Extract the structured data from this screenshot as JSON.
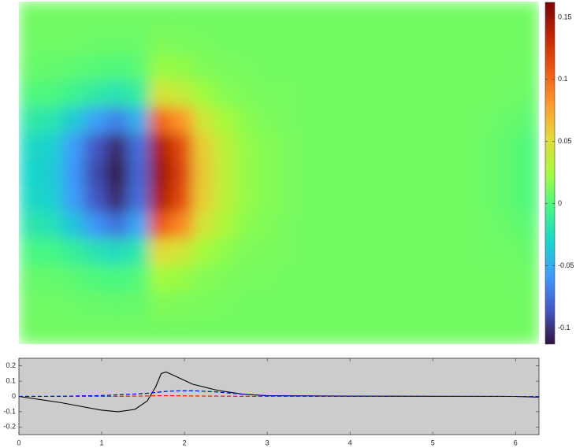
{
  "chart_data": [
    {
      "type": "heatmap",
      "zlim": [
        -0.113,
        0.162
      ],
      "zticks": [
        -0.1,
        -0.05,
        0,
        0.05,
        0.1,
        0.15
      ],
      "colormap": [
        "#30123b",
        "#4457c7",
        "#3e9bfe",
        "#18d6cb",
        "#46f884",
        "#a4fc3c",
        "#e2dc38",
        "#fe9b2d",
        "#ef5911",
        "#c42503",
        "#7a0403"
      ],
      "z": [
        [
          0.01,
          0.01,
          0.01,
          0.01,
          0.01,
          0.01,
          0.01,
          0.01,
          0.01,
          0.01,
          0.01,
          0.01,
          0.01,
          0.01,
          0.01,
          0.01,
          0.01,
          0.01,
          0.01,
          0.01,
          0.01,
          0.01,
          0.01,
          0.01
        ],
        [
          0.009,
          0.009,
          0.009,
          0.008,
          0.008,
          0.008,
          0.013,
          0.012,
          0.011,
          0.01,
          0.01,
          0.01,
          0.01,
          0.01,
          0.01,
          0.01,
          0.01,
          0.01,
          0.01,
          0.01,
          0.01,
          0.01,
          0.01,
          0.01
        ],
        [
          0.007,
          0.006,
          0.004,
          0.002,
          0.0,
          0.003,
          0.021,
          0.019,
          0.014,
          0.012,
          0.011,
          0.01,
          0.01,
          0.01,
          0.01,
          0.01,
          0.01,
          0.01,
          0.01,
          0.01,
          0.01,
          0.01,
          0.01,
          0.009
        ],
        [
          0.0,
          -0.001,
          -0.008,
          -0.015,
          -0.02,
          -0.013,
          0.045,
          0.038,
          0.023,
          0.016,
          0.013,
          0.011,
          0.011,
          0.01,
          0.01,
          0.01,
          0.01,
          0.01,
          0.01,
          0.01,
          0.01,
          0.01,
          0.009,
          0.008
        ],
        [
          -0.016,
          -0.019,
          -0.036,
          -0.055,
          -0.068,
          -0.049,
          0.101,
          0.082,
          0.043,
          0.026,
          0.017,
          0.013,
          0.011,
          0.01,
          0.01,
          0.01,
          0.01,
          0.01,
          0.01,
          0.01,
          0.01,
          0.009,
          0.007,
          0.004
        ],
        [
          -0.028,
          -0.033,
          -0.057,
          -0.085,
          -0.104,
          -0.076,
          0.143,
          0.115,
          0.058,
          0.034,
          0.02,
          0.015,
          0.012,
          0.01,
          0.01,
          0.01,
          0.01,
          0.01,
          0.01,
          0.01,
          0.01,
          0.008,
          0.005,
          0.0
        ],
        [
          -0.03,
          -0.035,
          -0.06,
          -0.09,
          -0.11,
          -0.08,
          0.15,
          0.12,
          0.06,
          0.035,
          0.02,
          0.015,
          0.012,
          0.01,
          0.01,
          0.01,
          0.01,
          0.01,
          0.01,
          0.01,
          0.01,
          0.008,
          0.005,
          0.0
        ],
        [
          -0.028,
          -0.033,
          -0.057,
          -0.085,
          -0.104,
          -0.076,
          0.143,
          0.115,
          0.058,
          0.034,
          0.02,
          0.015,
          0.012,
          0.01,
          0.01,
          0.01,
          0.01,
          0.01,
          0.01,
          0.01,
          0.01,
          0.008,
          0.005,
          0.0
        ],
        [
          -0.018,
          -0.022,
          -0.039,
          -0.06,
          -0.074,
          -0.053,
          0.108,
          0.087,
          0.045,
          0.028,
          0.017,
          0.014,
          0.011,
          0.01,
          0.01,
          0.01,
          0.01,
          0.01,
          0.01,
          0.01,
          0.01,
          0.009,
          0.007,
          0.003
        ],
        [
          -0.002,
          -0.004,
          -0.011,
          -0.02,
          -0.026,
          -0.017,
          0.052,
          0.043,
          0.025,
          0.018,
          0.013,
          0.012,
          0.011,
          0.01,
          0.01,
          0.01,
          0.01,
          0.01,
          0.01,
          0.01,
          0.01,
          0.009,
          0.009,
          0.007
        ],
        [
          0.006,
          0.006,
          0.003,
          0.0,
          -0.002,
          0.001,
          0.024,
          0.021,
          0.015,
          0.013,
          0.011,
          0.011,
          0.01,
          0.01,
          0.01,
          0.01,
          0.01,
          0.01,
          0.01,
          0.01,
          0.01,
          0.01,
          0.01,
          0.009
        ],
        [
          0.009,
          0.009,
          0.008,
          0.007,
          0.006,
          0.007,
          0.014,
          0.013,
          0.012,
          0.011,
          0.01,
          0.01,
          0.01,
          0.01,
          0.01,
          0.01,
          0.01,
          0.01,
          0.01,
          0.01,
          0.01,
          0.01,
          0.01,
          0.01
        ],
        [
          0.01,
          0.01,
          0.01,
          0.01,
          0.01,
          0.01,
          0.01,
          0.01,
          0.01,
          0.01,
          0.01,
          0.01,
          0.01,
          0.01,
          0.01,
          0.01,
          0.01,
          0.01,
          0.01,
          0.01,
          0.01,
          0.01,
          0.01,
          0.01
        ]
      ]
    },
    {
      "type": "line",
      "background": "#cccccc",
      "xlim": [
        0,
        6.2832
      ],
      "xticks": [
        0,
        1,
        2,
        3,
        4,
        5,
        6
      ],
      "ylim": [
        -0.25,
        0.25
      ],
      "yticks": [
        -0.2,
        -0.1,
        0,
        0.1,
        0.2
      ],
      "x": [
        0,
        0.5,
        1,
        1.2,
        1.4,
        1.55,
        1.65,
        1.72,
        1.78,
        1.9,
        2.1,
        2.4,
        2.7,
        3,
        4,
        5,
        6,
        6.28
      ],
      "series": [
        {
          "color": "#000000",
          "linestyle": "solid",
          "values": [
            0,
            -0.04,
            -0.09,
            -0.1,
            -0.085,
            -0.03,
            0.06,
            0.15,
            0.16,
            0.13,
            0.08,
            0.04,
            0.015,
            0.005,
            0.002,
            0.001,
            0,
            -0.005
          ]
        },
        {
          "color": "#ff0000",
          "linestyle": "dashed",
          "values": [
            0,
            0,
            0,
            0.001,
            0.002,
            0.003,
            0.004,
            0.005,
            0.005,
            0.004,
            0.003,
            0.002,
            0.001,
            0,
            0,
            0,
            0,
            0
          ]
        },
        {
          "color": "#00b000",
          "linestyle": "dashed",
          "values": [
            0,
            0.001,
            0.005,
            0.01,
            0.015,
            0.02,
            0.025,
            0.03,
            0.033,
            0.037,
            0.038,
            0.03,
            0.015,
            0.005,
            0.001,
            0,
            0,
            0
          ]
        },
        {
          "color": "#0000ff",
          "linestyle": "dashed",
          "values": [
            0,
            0.001,
            0.006,
            0.011,
            0.016,
            0.021,
            0.026,
            0.03,
            0.033,
            0.036,
            0.037,
            0.029,
            0.014,
            0.005,
            0.001,
            0,
            0,
            -0.002
          ]
        }
      ]
    }
  ]
}
